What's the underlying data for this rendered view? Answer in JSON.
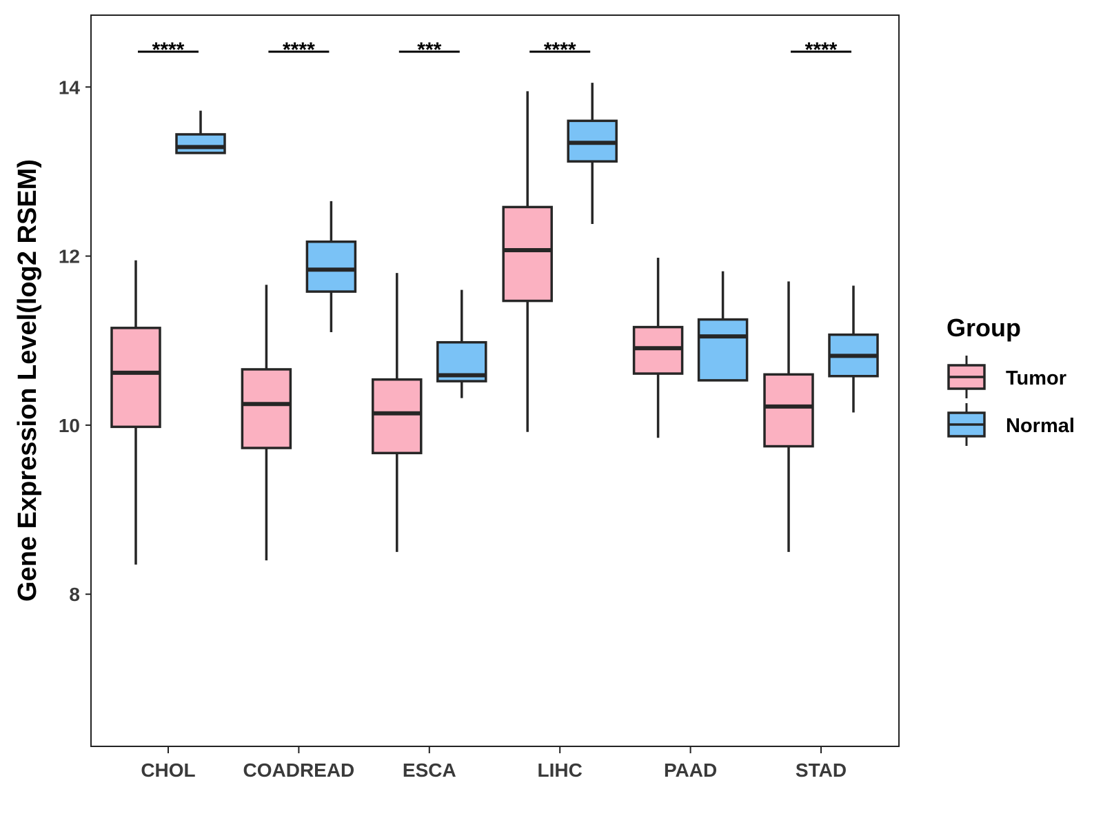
{
  "chart_data": {
    "type": "boxplot",
    "title": "",
    "xlabel": "",
    "ylabel": "Gene Expression Level(log2 RSEM)",
    "ylim": [
      6.2,
      14.85
    ],
    "yticks": [
      8,
      10,
      12,
      14
    ],
    "categories": [
      "CHOL",
      "COADREAD",
      "ESCA",
      "LIHC",
      "PAAD",
      "STAD"
    ],
    "legend": {
      "title": "Group",
      "position": "right"
    },
    "colors": {
      "Tumor": "#FBB1C1",
      "Normal": "#7AC2F6",
      "stroke": "#262626"
    },
    "series": [
      {
        "name": "Tumor",
        "boxes": [
          {
            "category": "CHOL",
            "whisker_low": 8.35,
            "q1": 9.98,
            "median": 10.62,
            "q3": 11.15,
            "whisker_high": 11.95
          },
          {
            "category": "COADREAD",
            "whisker_low": 8.4,
            "q1": 9.73,
            "median": 10.25,
            "q3": 10.66,
            "whisker_high": 11.66
          },
          {
            "category": "ESCA",
            "whisker_low": 8.5,
            "q1": 9.67,
            "median": 10.14,
            "q3": 10.54,
            "whisker_high": 11.8
          },
          {
            "category": "LIHC",
            "whisker_low": 9.92,
            "q1": 11.47,
            "median": 12.07,
            "q3": 12.58,
            "whisker_high": 13.95
          },
          {
            "category": "PAAD",
            "whisker_low": 9.85,
            "q1": 10.61,
            "median": 10.91,
            "q3": 11.16,
            "whisker_high": 11.98
          },
          {
            "category": "STAD",
            "whisker_low": 8.5,
            "q1": 9.75,
            "median": 10.22,
            "q3": 10.6,
            "whisker_high": 11.7
          }
        ]
      },
      {
        "name": "Normal",
        "boxes": [
          {
            "category": "CHOL",
            "whisker_low": 13.22,
            "q1": 13.22,
            "median": 13.29,
            "q3": 13.44,
            "whisker_high": 13.72
          },
          {
            "category": "COADREAD",
            "whisker_low": 11.1,
            "q1": 11.58,
            "median": 11.84,
            "q3": 12.17,
            "whisker_high": 12.65
          },
          {
            "category": "ESCA",
            "whisker_low": 10.32,
            "q1": 10.52,
            "median": 10.59,
            "q3": 10.98,
            "whisker_high": 11.6
          },
          {
            "category": "LIHC",
            "whisker_low": 12.38,
            "q1": 13.12,
            "median": 13.34,
            "q3": 13.6,
            "whisker_high": 14.05
          },
          {
            "category": "PAAD",
            "whisker_low": 10.53,
            "q1": 10.53,
            "median": 11.05,
            "q3": 11.25,
            "whisker_high": 11.82
          },
          {
            "category": "STAD",
            "whisker_low": 10.15,
            "q1": 10.58,
            "median": 10.82,
            "q3": 11.07,
            "whisker_high": 11.65
          }
        ]
      }
    ],
    "annotations": [
      {
        "category": "CHOL",
        "label": "****"
      },
      {
        "category": "COADREAD",
        "label": "****"
      },
      {
        "category": "ESCA",
        "label": "***"
      },
      {
        "category": "LIHC",
        "label": "****"
      },
      {
        "category": "STAD",
        "label": "****"
      }
    ]
  }
}
